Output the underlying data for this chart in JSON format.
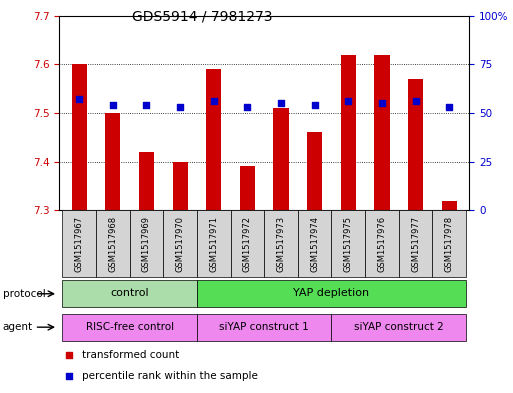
{
  "title": "GDS5914 / 7981273",
  "samples": [
    "GSM1517967",
    "GSM1517968",
    "GSM1517969",
    "GSM1517970",
    "GSM1517971",
    "GSM1517972",
    "GSM1517973",
    "GSM1517974",
    "GSM1517975",
    "GSM1517976",
    "GSM1517977",
    "GSM1517978"
  ],
  "transformed_counts": [
    7.6,
    7.5,
    7.42,
    7.4,
    7.59,
    7.39,
    7.51,
    7.46,
    7.62,
    7.62,
    7.57,
    7.32
  ],
  "percentile_ranks": [
    57,
    54,
    54,
    53,
    56,
    53,
    55,
    54,
    56,
    55,
    56,
    53
  ],
  "ylim_left": [
    7.3,
    7.7
  ],
  "ylim_right": [
    0,
    100
  ],
  "yticks_left": [
    7.3,
    7.4,
    7.5,
    7.6,
    7.7
  ],
  "ytick_labels_left": [
    "7.3",
    "7.4",
    "7.5",
    "7.6",
    "7.7"
  ],
  "yticks_right": [
    0,
    25,
    50,
    75,
    100
  ],
  "ytick_labels_right": [
    "0",
    "25",
    "50",
    "75",
    "100%"
  ],
  "bar_color": "#cc0000",
  "dot_color": "#0000cc",
  "bar_bottom": 7.3,
  "protocol_groups": [
    {
      "label": "control",
      "start": 0,
      "end": 3,
      "color": "#aaddaa"
    },
    {
      "label": "YAP depletion",
      "start": 4,
      "end": 11,
      "color": "#55dd55"
    }
  ],
  "agent_groups": [
    {
      "label": "RISC-free control",
      "start": 0,
      "end": 3,
      "color": "#ee88ee"
    },
    {
      "label": "siYAP construct 1",
      "start": 4,
      "end": 7,
      "color": "#ee88ee"
    },
    {
      "label": "siYAP construct 2",
      "start": 8,
      "end": 11,
      "color": "#ee88ee"
    }
  ],
  "protocol_label": "protocol",
  "agent_label": "agent",
  "background_color": "#ffffff",
  "spine_color": "black",
  "title_fontsize": 10,
  "tick_fontsize": 7.5,
  "sample_fontsize": 6,
  "row_fontsize": 8
}
